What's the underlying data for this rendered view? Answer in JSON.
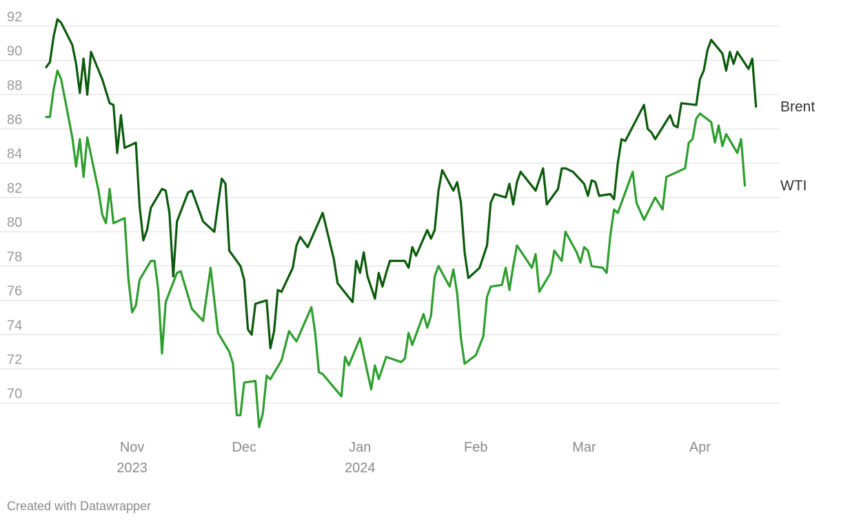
{
  "chart_data": {
    "type": "line",
    "title": "",
    "xlabel": "",
    "ylabel": "",
    "x_range": [
      "2023-10-09",
      "2024-04-19"
    ],
    "ylim": [
      68.5,
      92.8
    ],
    "yticks": [
      70,
      72,
      74,
      76,
      78,
      80,
      82,
      84,
      86,
      88,
      90,
      92
    ],
    "ytick_labels": [
      "70",
      "72",
      "74",
      "76",
      "78",
      "80",
      "82",
      "84",
      "86",
      "88",
      "90",
      "92"
    ],
    "x_ticks": [
      {
        "date": "2023-11-01",
        "label": "Nov",
        "year": "2023"
      },
      {
        "date": "2023-12-01",
        "label": "Dec",
        "year": ""
      },
      {
        "date": "2024-01-01",
        "label": "Jan",
        "year": "2024"
      },
      {
        "date": "2024-02-01",
        "label": "Feb",
        "year": ""
      },
      {
        "date": "2024-03-01",
        "label": "Mar",
        "year": ""
      },
      {
        "date": "2024-04-01",
        "label": "Apr",
        "year": ""
      }
    ],
    "series": [
      {
        "name": "Brent",
        "color": "#0b5a0b",
        "points": [
          [
            "2023-10-09",
            89.6
          ],
          [
            "2023-10-10",
            89.9
          ],
          [
            "2023-10-11",
            91.4
          ],
          [
            "2023-10-12",
            92.4
          ],
          [
            "2023-10-13",
            92.2
          ],
          [
            "2023-10-16",
            90.9
          ],
          [
            "2023-10-17",
            89.8
          ],
          [
            "2023-10-18",
            88.1
          ],
          [
            "2023-10-19",
            90.1
          ],
          [
            "2023-10-20",
            88.0
          ],
          [
            "2023-10-21",
            90.5
          ],
          [
            "2023-10-24",
            88.9
          ],
          [
            "2023-10-26",
            87.5
          ],
          [
            "2023-10-27",
            87.4
          ],
          [
            "2023-10-28",
            84.6
          ],
          [
            "2023-10-29",
            86.8
          ],
          [
            "2023-10-30",
            84.9
          ],
          [
            "2023-11-01",
            85.1
          ],
          [
            "2023-11-02",
            85.2
          ],
          [
            "2023-11-03",
            81.5
          ],
          [
            "2023-11-04",
            79.5
          ],
          [
            "2023-11-05",
            80.1
          ],
          [
            "2023-11-06",
            81.4
          ],
          [
            "2023-11-09",
            82.5
          ],
          [
            "2023-11-10",
            82.4
          ],
          [
            "2023-11-11",
            81.1
          ],
          [
            "2023-11-12",
            77.4
          ],
          [
            "2023-11-13",
            80.6
          ],
          [
            "2023-11-16",
            82.3
          ],
          [
            "2023-11-17",
            82.4
          ],
          [
            "2023-11-18",
            81.8
          ],
          [
            "2023-11-20",
            80.6
          ],
          [
            "2023-11-23",
            80.0
          ],
          [
            "2023-11-24",
            81.6
          ],
          [
            "2023-11-25",
            83.1
          ],
          [
            "2023-11-26",
            82.8
          ],
          [
            "2023-11-27",
            78.9
          ],
          [
            "2023-11-30",
            78.0
          ],
          [
            "2023-12-01",
            77.2
          ],
          [
            "2023-12-02",
            74.3
          ],
          [
            "2023-12-03",
            74.0
          ],
          [
            "2023-12-04",
            75.8
          ],
          [
            "2023-12-07",
            76.0
          ],
          [
            "2023-12-08",
            73.2
          ],
          [
            "2023-12-09",
            74.2
          ],
          [
            "2023-12-10",
            76.6
          ],
          [
            "2023-12-11",
            76.5
          ],
          [
            "2023-12-14",
            77.9
          ],
          [
            "2023-12-15",
            79.2
          ],
          [
            "2023-12-16",
            79.7
          ],
          [
            "2023-12-18",
            79.1
          ],
          [
            "2023-12-22",
            81.1
          ],
          [
            "2023-12-25",
            78.4
          ],
          [
            "2023-12-26",
            77.0
          ],
          [
            "2023-12-30",
            75.9
          ],
          [
            "2023-12-31",
            78.3
          ],
          [
            "2024-01-01",
            77.6
          ],
          [
            "2024-01-02",
            78.8
          ],
          [
            "2024-01-03",
            77.4
          ],
          [
            "2024-01-05",
            76.1
          ],
          [
            "2024-01-06",
            77.6
          ],
          [
            "2024-01-07",
            76.8
          ],
          [
            "2024-01-08",
            77.6
          ],
          [
            "2024-01-09",
            78.3
          ],
          [
            "2024-01-13",
            78.3
          ],
          [
            "2024-01-14",
            77.9
          ],
          [
            "2024-01-15",
            79.1
          ],
          [
            "2024-01-16",
            78.6
          ],
          [
            "2024-01-19",
            80.1
          ],
          [
            "2024-01-20",
            79.6
          ],
          [
            "2024-01-21",
            80.1
          ],
          [
            "2024-01-22",
            82.4
          ],
          [
            "2024-01-23",
            83.6
          ],
          [
            "2024-01-26",
            82.4
          ],
          [
            "2024-01-27",
            82.9
          ],
          [
            "2024-01-28",
            81.7
          ],
          [
            "2024-01-29",
            78.8
          ],
          [
            "2024-01-30",
            77.3
          ],
          [
            "2024-02-02",
            77.9
          ],
          [
            "2024-02-04",
            79.2
          ],
          [
            "2024-02-05",
            81.7
          ],
          [
            "2024-02-06",
            82.2
          ],
          [
            "2024-02-09",
            82.0
          ],
          [
            "2024-02-10",
            82.8
          ],
          [
            "2024-02-11",
            81.6
          ],
          [
            "2024-02-12",
            82.9
          ],
          [
            "2024-02-13",
            83.5
          ],
          [
            "2024-02-17",
            82.4
          ],
          [
            "2024-02-19",
            83.7
          ],
          [
            "2024-02-20",
            81.6
          ],
          [
            "2024-02-23",
            82.5
          ],
          [
            "2024-02-24",
            83.7
          ],
          [
            "2024-02-25",
            83.7
          ],
          [
            "2024-02-27",
            83.5
          ],
          [
            "2024-03-01",
            82.8
          ],
          [
            "2024-03-02",
            82.1
          ],
          [
            "2024-03-03",
            83.0
          ],
          [
            "2024-03-04",
            82.9
          ],
          [
            "2024-03-05",
            82.1
          ],
          [
            "2024-03-08",
            82.2
          ],
          [
            "2024-03-09",
            81.9
          ],
          [
            "2024-03-10",
            84.0
          ],
          [
            "2024-03-11",
            85.4
          ],
          [
            "2024-03-12",
            85.3
          ],
          [
            "2024-03-17",
            87.4
          ],
          [
            "2024-03-18",
            86.0
          ],
          [
            "2024-03-19",
            85.8
          ],
          [
            "2024-03-20",
            85.4
          ],
          [
            "2024-03-24",
            86.8
          ],
          [
            "2024-03-25",
            86.2
          ],
          [
            "2024-03-26",
            86.1
          ],
          [
            "2024-03-27",
            87.5
          ],
          [
            "2024-03-31",
            87.4
          ],
          [
            "2024-04-01",
            88.9
          ],
          [
            "2024-04-02",
            89.4
          ],
          [
            "2024-04-03",
            90.6
          ],
          [
            "2024-04-04",
            91.2
          ],
          [
            "2024-04-07",
            90.4
          ],
          [
            "2024-04-08",
            89.4
          ],
          [
            "2024-04-09",
            90.5
          ],
          [
            "2024-04-10",
            89.8
          ],
          [
            "2024-04-11",
            90.5
          ],
          [
            "2024-04-14",
            89.5
          ],
          [
            "2024-04-15",
            90.1
          ],
          [
            "2024-04-16",
            87.3
          ]
        ]
      },
      {
        "name": "WTI",
        "color": "#2e9e2e",
        "points": [
          [
            "2023-10-09",
            86.7
          ],
          [
            "2023-10-10",
            86.7
          ],
          [
            "2023-10-11",
            88.3
          ],
          [
            "2023-10-12",
            89.4
          ],
          [
            "2023-10-13",
            88.9
          ],
          [
            "2023-10-16",
            85.5
          ],
          [
            "2023-10-17",
            83.8
          ],
          [
            "2023-10-18",
            85.4
          ],
          [
            "2023-10-19",
            83.2
          ],
          [
            "2023-10-20",
            85.5
          ],
          [
            "2023-10-23",
            82.4
          ],
          [
            "2023-10-24",
            81.0
          ],
          [
            "2023-10-25",
            80.5
          ],
          [
            "2023-10-26",
            82.5
          ],
          [
            "2023-10-27",
            80.5
          ],
          [
            "2023-10-30",
            80.8
          ],
          [
            "2023-10-31",
            77.3
          ],
          [
            "2023-11-01",
            75.3
          ],
          [
            "2023-11-02",
            75.7
          ],
          [
            "2023-11-03",
            77.2
          ],
          [
            "2023-11-06",
            78.3
          ],
          [
            "2023-11-07",
            78.3
          ],
          [
            "2023-11-08",
            76.6
          ],
          [
            "2023-11-09",
            72.9
          ],
          [
            "2023-11-10",
            75.9
          ],
          [
            "2023-11-13",
            77.6
          ],
          [
            "2023-11-14",
            77.7
          ],
          [
            "2023-11-17",
            75.5
          ],
          [
            "2023-11-20",
            74.8
          ],
          [
            "2023-11-22",
            77.9
          ],
          [
            "2023-11-24",
            74.1
          ],
          [
            "2023-11-27",
            73.0
          ],
          [
            "2023-11-28",
            72.3
          ],
          [
            "2023-11-29",
            69.3
          ],
          [
            "2023-11-30",
            69.3
          ],
          [
            "2023-12-01",
            71.2
          ],
          [
            "2023-12-04",
            71.3
          ],
          [
            "2023-12-05",
            68.6
          ],
          [
            "2023-12-06",
            69.4
          ],
          [
            "2023-12-07",
            71.6
          ],
          [
            "2023-12-08",
            71.4
          ],
          [
            "2023-12-11",
            72.5
          ],
          [
            "2023-12-13",
            74.2
          ],
          [
            "2023-12-15",
            73.6
          ],
          [
            "2023-12-19",
            75.6
          ],
          [
            "2023-12-20",
            74.1
          ],
          [
            "2023-12-21",
            71.8
          ],
          [
            "2023-12-22",
            71.7
          ],
          [
            "2023-12-27",
            70.4
          ],
          [
            "2023-12-28",
            72.7
          ],
          [
            "2023-12-29",
            72.2
          ],
          [
            "2024-01-01",
            73.8
          ],
          [
            "2024-01-04",
            70.8
          ],
          [
            "2024-01-05",
            72.2
          ],
          [
            "2024-01-06",
            71.4
          ],
          [
            "2024-01-08",
            72.7
          ],
          [
            "2024-01-12",
            72.4
          ],
          [
            "2024-01-13",
            72.6
          ],
          [
            "2024-01-14",
            74.1
          ],
          [
            "2024-01-15",
            73.4
          ],
          [
            "2024-01-18",
            75.2
          ],
          [
            "2024-01-19",
            74.4
          ],
          [
            "2024-01-20",
            75.1
          ],
          [
            "2024-01-21",
            77.4
          ],
          [
            "2024-01-22",
            78.0
          ],
          [
            "2024-01-25",
            76.8
          ],
          [
            "2024-01-26",
            77.8
          ],
          [
            "2024-01-27",
            76.4
          ],
          [
            "2024-01-28",
            73.8
          ],
          [
            "2024-01-29",
            72.3
          ],
          [
            "2024-02-01",
            72.8
          ],
          [
            "2024-02-03",
            73.9
          ],
          [
            "2024-02-04",
            76.2
          ],
          [
            "2024-02-05",
            76.8
          ],
          [
            "2024-02-08",
            76.9
          ],
          [
            "2024-02-09",
            77.9
          ],
          [
            "2024-02-10",
            76.6
          ],
          [
            "2024-02-11",
            78.0
          ],
          [
            "2024-02-12",
            79.2
          ],
          [
            "2024-02-16",
            77.9
          ],
          [
            "2024-02-17",
            78.7
          ],
          [
            "2024-02-18",
            76.5
          ],
          [
            "2024-02-21",
            77.6
          ],
          [
            "2024-02-22",
            78.9
          ],
          [
            "2024-02-23",
            78.6
          ],
          [
            "2024-02-24",
            78.3
          ],
          [
            "2024-02-25",
            80.0
          ],
          [
            "2024-02-28",
            78.8
          ],
          [
            "2024-02-29",
            78.2
          ],
          [
            "2024-03-01",
            79.1
          ],
          [
            "2024-03-02",
            78.9
          ],
          [
            "2024-03-03",
            78.0
          ],
          [
            "2024-03-06",
            77.9
          ],
          [
            "2024-03-07",
            77.6
          ],
          [
            "2024-03-08",
            79.8
          ],
          [
            "2024-03-09",
            81.3
          ],
          [
            "2024-03-10",
            81.1
          ],
          [
            "2024-03-14",
            83.5
          ],
          [
            "2024-03-15",
            81.7
          ],
          [
            "2024-03-17",
            80.7
          ],
          [
            "2024-03-20",
            82.0
          ],
          [
            "2024-03-22",
            81.3
          ],
          [
            "2024-03-23",
            83.2
          ],
          [
            "2024-03-28",
            83.7
          ],
          [
            "2024-03-29",
            85.2
          ],
          [
            "2024-03-30",
            85.4
          ],
          [
            "2024-03-31",
            86.6
          ],
          [
            "2024-04-01",
            86.9
          ],
          [
            "2024-04-04",
            86.4
          ],
          [
            "2024-04-05",
            85.2
          ],
          [
            "2024-04-06",
            86.2
          ],
          [
            "2024-04-07",
            85.0
          ],
          [
            "2024-04-08",
            85.7
          ],
          [
            "2024-04-11",
            84.6
          ],
          [
            "2024-04-12",
            85.4
          ],
          [
            "2024-04-13",
            82.7
          ]
        ]
      }
    ]
  },
  "footer": {
    "credit": "Created with Datawrapper"
  }
}
